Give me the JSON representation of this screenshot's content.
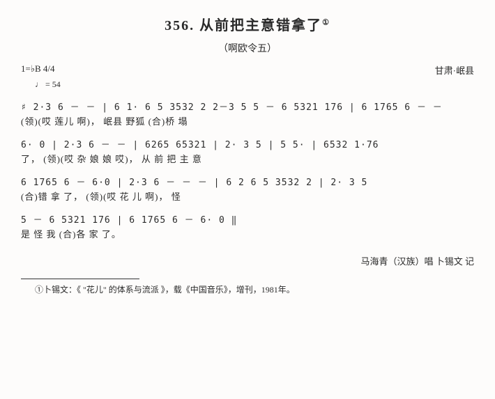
{
  "title_num": "356.",
  "title_text": "从前把主意错拿了",
  "title_sup": "①",
  "subtitle": "（啊欧令五）",
  "key_sig": "1=♭B",
  "time_sig": "4/4",
  "tempo": "♩ = 54",
  "origin": "甘肃·岷县",
  "lines": [
    {
      "notation": "♯ 2·3 6 － － | 6 1· 6 5  3532 2 2－3 5 5 － 6 5321 176 | 6 1765 6 － －",
      "lyrics": "(领)(哎        莲儿        啊)，     岷县   野狐    (合)桥  塌"
    },
    {
      "notation": "6·   0 | 2·3 6 － － | 6265  65321 | 2·  3 5 | 5  5· | 6532  1·76",
      "lyrics": " 了，    (领)(哎           杂 娘     娘 哎)，    从     前   把   主    意"
    },
    {
      "notation": " 6 1765  6  －  6·0 | 2·3 6  －  －  － | 6 2 6 5  3532  2 |  2·  3 5",
      "lyrics": "(合)错  拿      了，  (领)(哎              花 儿 啊)，            怪"
    },
    {
      "notation": " 5   －  6 5321  176 |  6 1765 6  －   6·  0 ‖",
      "lyrics": " 是     怪  我     (合)各  家       了。"
    }
  ],
  "credit": "马海青（汉族）唱  卜锡文 记",
  "footnote": "①卜锡文：《 \"花儿\" 的体系与流派 》，载《中国音乐》，增刊，1981年。"
}
